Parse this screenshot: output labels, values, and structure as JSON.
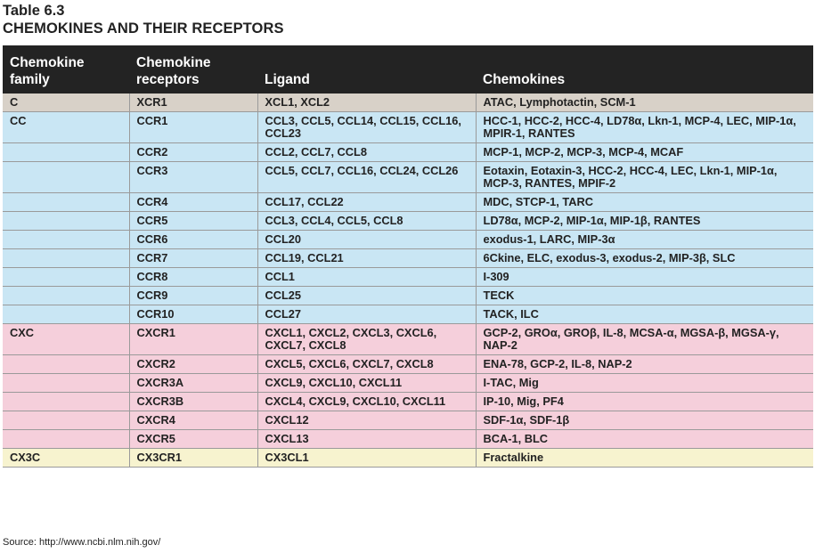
{
  "table_number": "Table 6.3",
  "table_title": "CHEMOKINES AND THEIR RECEPTORS",
  "headers": {
    "family": [
      "Chemokine",
      "family"
    ],
    "receptors": [
      "Chemokine",
      "receptors"
    ],
    "ligand": "Ligand",
    "chemokines": "Chemokines"
  },
  "rows": [
    {
      "group": "c",
      "family": "C",
      "receptor": "XCR1",
      "ligand": "XCL1, XCL2",
      "chemokines": "ATAC, Lymphotactin, SCM-1"
    },
    {
      "group": "cc",
      "family": "CC",
      "receptor": "CCR1",
      "ligand": "CCL3, CCL5, CCL14, CCL15, CCL16, CCL23",
      "chemokines": "HCC-1, HCC-2, HCC-4, LD78α, Lkn-1, MCP-4, LEC, MIP-1α, MPIR-1, RANTES"
    },
    {
      "group": "cc",
      "family": "",
      "receptor": "CCR2",
      "ligand": "CCL2, CCL7, CCL8",
      "chemokines": "MCP-1, MCP-2, MCP-3, MCP-4, MCAF"
    },
    {
      "group": "cc",
      "family": "",
      "receptor": "CCR3",
      "ligand": "CCL5, CCL7, CCL16, CCL24, CCL26",
      "chemokines": "Eotaxin, Eotaxin-3, HCC-2, HCC-4, LEC, Lkn-1, MIP-1α, MCP-3, RANTES, MPIF-2"
    },
    {
      "group": "cc",
      "family": "",
      "receptor": "CCR4",
      "ligand": "CCL17, CCL22",
      "chemokines": "MDC, STCP-1, TARC"
    },
    {
      "group": "cc",
      "family": "",
      "receptor": "CCR5",
      "ligand": "CCL3, CCL4, CCL5, CCL8",
      "chemokines": "LD78α, MCP-2, MIP-1α, MIP-1β, RANTES"
    },
    {
      "group": "cc",
      "family": "",
      "receptor": "CCR6",
      "ligand": "CCL20",
      "chemokines": "exodus-1, LARC, MIP-3α"
    },
    {
      "group": "cc",
      "family": "",
      "receptor": "CCR7",
      "ligand": "CCL19, CCL21",
      "chemokines": "6Ckine, ELC, exodus-3, exodus-2, MIP-3β, SLC"
    },
    {
      "group": "cc",
      "family": "",
      "receptor": "CCR8",
      "ligand": "CCL1",
      "chemokines": "I-309"
    },
    {
      "group": "cc",
      "family": "",
      "receptor": "CCR9",
      "ligand": "CCL25",
      "chemokines": "TECK"
    },
    {
      "group": "cc",
      "family": "",
      "receptor": "CCR10",
      "ligand": "CCL27",
      "chemokines": "TACK, ILC"
    },
    {
      "group": "cxc",
      "family": "CXC",
      "receptor": "CXCR1",
      "ligand": "CXCL1, CXCL2, CXCL3, CXCL6, CXCL7, CXCL8",
      "chemokines": "GCP-2, GROα, GROβ, IL-8, MCSA-α, MGSA-β, MGSA-γ, NAP-2"
    },
    {
      "group": "cxc",
      "family": "",
      "receptor": "CXCR2",
      "ligand": "CXCL5, CXCL6, CXCL7, CXCL8",
      "chemokines": "ENA-78, GCP-2, IL-8, NAP-2"
    },
    {
      "group": "cxc",
      "family": "",
      "receptor": "CXCR3A",
      "ligand": "CXCL9, CXCL10, CXCL11",
      "chemokines": "I-TAC, Mig"
    },
    {
      "group": "cxc",
      "family": "",
      "receptor": "CXCR3B",
      "ligand": "CXCL4, CXCL9, CXCL10, CXCL11",
      "chemokines": "IP-10, Mig, PF4"
    },
    {
      "group": "cxc",
      "family": "",
      "receptor": "CXCR4",
      "ligand": "CXCL12",
      "chemokines": "SDF-1α, SDF-1β"
    },
    {
      "group": "cxc",
      "family": "",
      "receptor": "CXCR5",
      "ligand": "CXCL13",
      "chemokines": "BCA-1, BLC"
    },
    {
      "group": "cx3c",
      "family": "CX3C",
      "receptor": "CX3CR1",
      "ligand": "CX3CL1",
      "chemokines": "Fractalkine"
    }
  ],
  "source": "Source: http://www.ncbi.nlm.nih.gov/",
  "colors": {
    "header_bg": "#232323",
    "c": "#d8d1c8",
    "cc": "#c9e6f4",
    "cxc": "#f5cfdb",
    "cx3c": "#f7f3cf"
  }
}
